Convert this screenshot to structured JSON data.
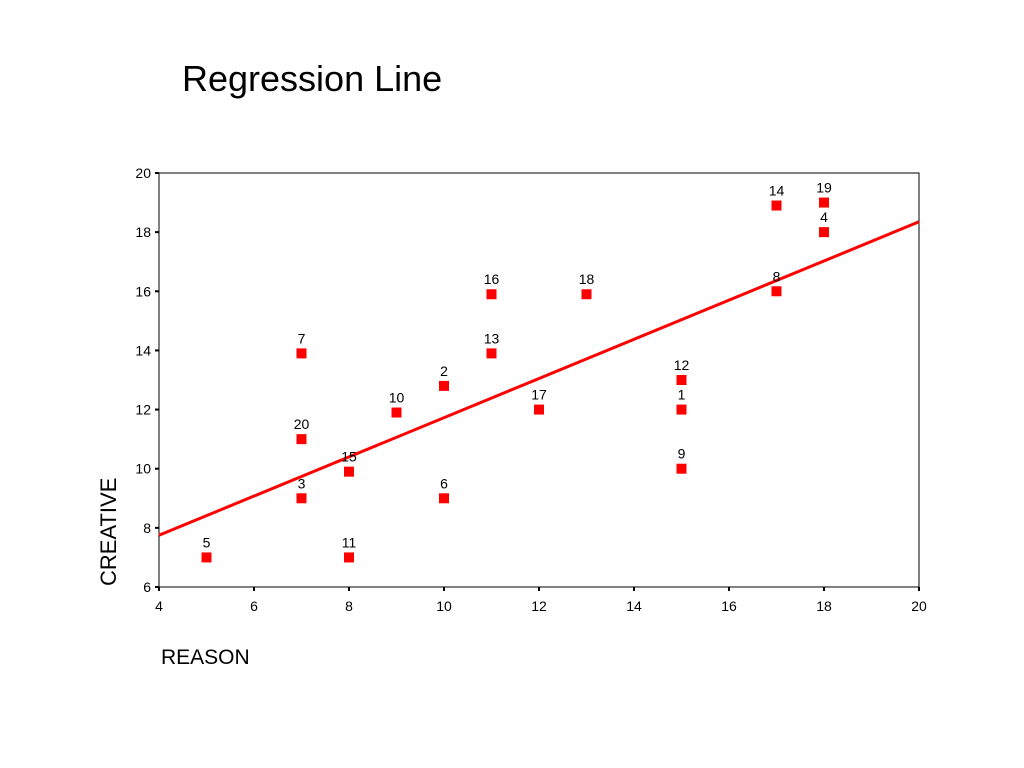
{
  "slide": {
    "title": "Regression Line"
  },
  "chart_data": {
    "type": "scatter",
    "title": "",
    "xlabel": "REASON",
    "ylabel": "CREATIVE",
    "xlim": [
      4,
      20
    ],
    "ylim": [
      6,
      20
    ],
    "xticks": [
      4,
      6,
      8,
      10,
      12,
      14,
      16,
      18,
      20
    ],
    "yticks": [
      6,
      8,
      10,
      12,
      14,
      16,
      18,
      20
    ],
    "grid": false,
    "colors": {
      "points": "#ff0000",
      "line": "#ff0000",
      "frame": "#000000"
    },
    "points": [
      {
        "label": "1",
        "x": 15,
        "y": 12
      },
      {
        "label": "2",
        "x": 10,
        "y": 12.8
      },
      {
        "label": "3",
        "x": 7,
        "y": 9
      },
      {
        "label": "4",
        "x": 18,
        "y": 18
      },
      {
        "label": "5",
        "x": 5,
        "y": 7
      },
      {
        "label": "6",
        "x": 10,
        "y": 9
      },
      {
        "label": "7",
        "x": 7,
        "y": 13.9
      },
      {
        "label": "8",
        "x": 17,
        "y": 16
      },
      {
        "label": "9",
        "x": 15,
        "y": 10
      },
      {
        "label": "10",
        "x": 9,
        "y": 11.9
      },
      {
        "label": "11",
        "x": 8,
        "y": 7
      },
      {
        "label": "12",
        "x": 15,
        "y": 13
      },
      {
        "label": "13",
        "x": 11,
        "y": 13.9
      },
      {
        "label": "14",
        "x": 17,
        "y": 18.9
      },
      {
        "label": "15",
        "x": 8,
        "y": 9.9
      },
      {
        "label": "16",
        "x": 11,
        "y": 15.9
      },
      {
        "label": "17",
        "x": 12,
        "y": 12
      },
      {
        "label": "18",
        "x": 13,
        "y": 15.9
      },
      {
        "label": "19",
        "x": 18,
        "y": 19
      },
      {
        "label": "20",
        "x": 7,
        "y": 11
      }
    ],
    "regression_line": {
      "from": {
        "x": 4,
        "y": 7.75
      },
      "to": {
        "x": 20,
        "y": 18.35
      }
    }
  }
}
